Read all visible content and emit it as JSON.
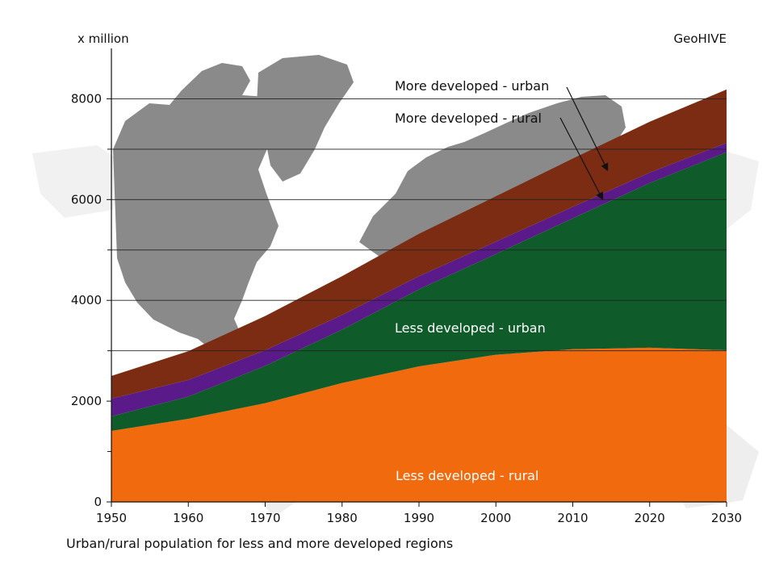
{
  "chart_data": {
    "type": "area",
    "stacked": true,
    "title": "",
    "unit_label": "x million",
    "source": "GeoHIVE",
    "caption": "Urban/rural population for less and more developed regions",
    "xlim": [
      1950,
      2030
    ],
    "ylim": [
      0,
      9000
    ],
    "x_ticks": [
      1950,
      1960,
      1970,
      1980,
      1990,
      2000,
      2010,
      2020,
      2030
    ],
    "y_tick_labels": [
      0,
      2000,
      4000,
      6000,
      8000
    ],
    "y_minor_ticks": [
      1000,
      3000,
      5000,
      7000
    ],
    "gridlines_y": [
      3000,
      4000,
      5000,
      6000,
      7000,
      8000
    ],
    "background_map": true,
    "x": [
      1950,
      1960,
      1970,
      1980,
      1990,
      2000,
      2010,
      2020,
      2030
    ],
    "series": [
      {
        "name": "Less developed - rural",
        "color": "#f26a0e",
        "values": [
          1410,
          1650,
          1960,
          2360,
          2690,
          2920,
          3030,
          3060,
          3010
        ]
      },
      {
        "name": "Less developed - urban",
        "color": "#0f5c2a",
        "values": [
          290,
          440,
          740,
          1060,
          1530,
          2000,
          2600,
          3270,
          3930
        ]
      },
      {
        "name": "More developed - rural",
        "color": "#5b1a8a",
        "values": [
          350,
          330,
          310,
          290,
          260,
          245,
          225,
          205,
          185
        ]
      },
      {
        "name": "More developed - urban",
        "color": "#7b2c12",
        "values": [
          450,
          570,
          680,
          770,
          840,
          900,
          960,
          1010,
          1060
        ]
      }
    ],
    "labels": {
      "less_rural": "Less developed - rural",
      "less_urban": "Less developed - urban",
      "more_rural": "More developed - rural",
      "more_urban": "More developed - urban"
    }
  }
}
